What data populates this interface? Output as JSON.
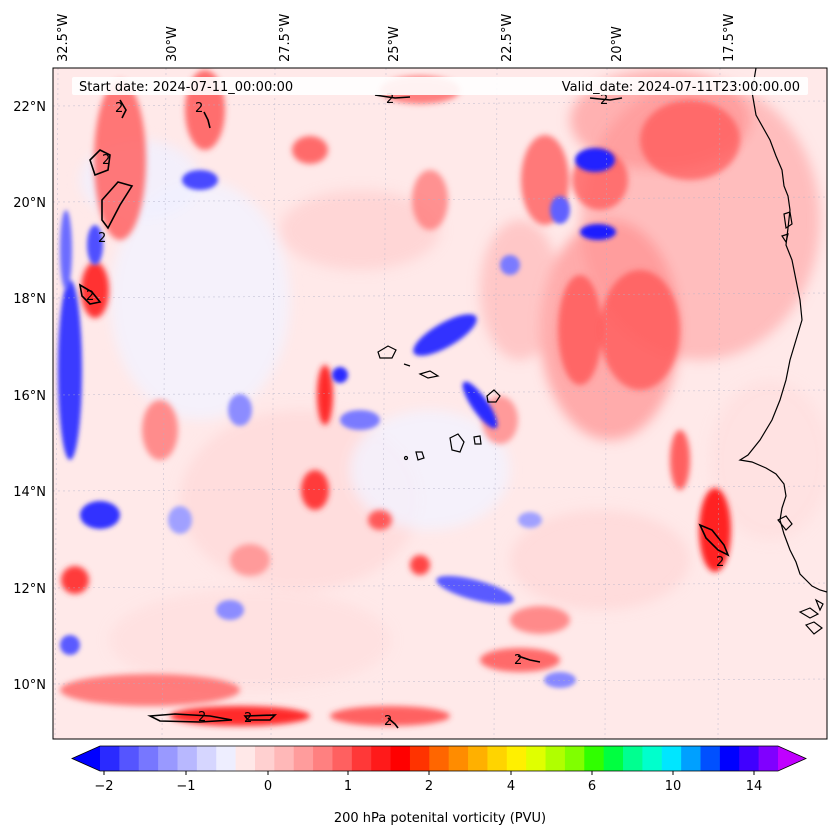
{
  "map": {
    "start_date": "Start date: 2024-07-11_00:00:00",
    "valid_date": "Valid_date: 2024-07-11T23:00:00.00",
    "lon_labels": [
      "32.5°W",
      "30°W",
      "27.5°W",
      "25°W",
      "22.5°W",
      "20°W",
      "17.5°W"
    ],
    "lat_labels": [
      "22°N",
      "20°N",
      "18°N",
      "16°N",
      "14°N",
      "12°N",
      "10°N"
    ],
    "contour_label": "2",
    "colorbar_label": "200 hPa potenital vorticity (PVU)",
    "colorbar_ticks": [
      "−2",
      "−1",
      "0",
      "1",
      "2",
      "4",
      "6",
      "10",
      "14"
    ],
    "colorbar_colors": [
      "#0000ff",
      "#2a2aff",
      "#5555ff",
      "#7777ff",
      "#9999ff",
      "#b8b8ff",
      "#d6d6ff",
      "#eeeeff",
      "#ffe8e8",
      "#ffd0d0",
      "#ffb8b8",
      "#ff9c9c",
      "#ff8080",
      "#ff6060",
      "#ff3838",
      "#ff1a1a",
      "#ff0000",
      "#ff3300",
      "#ff6600",
      "#ff8c00",
      "#ffb000",
      "#ffd400",
      "#fff000",
      "#e0ff00",
      "#b0ff00",
      "#80ff00",
      "#30ff00",
      "#00ff40",
      "#00ff90",
      "#00ffcc",
      "#00e6ff",
      "#00a0ff",
      "#0050ff",
      "#0000ff",
      "#4000ff",
      "#8000ff",
      "#c000ff"
    ],
    "colors": {
      "background": "#ffe9e9",
      "coast": "#000000",
      "contour": "#000000"
    }
  }
}
